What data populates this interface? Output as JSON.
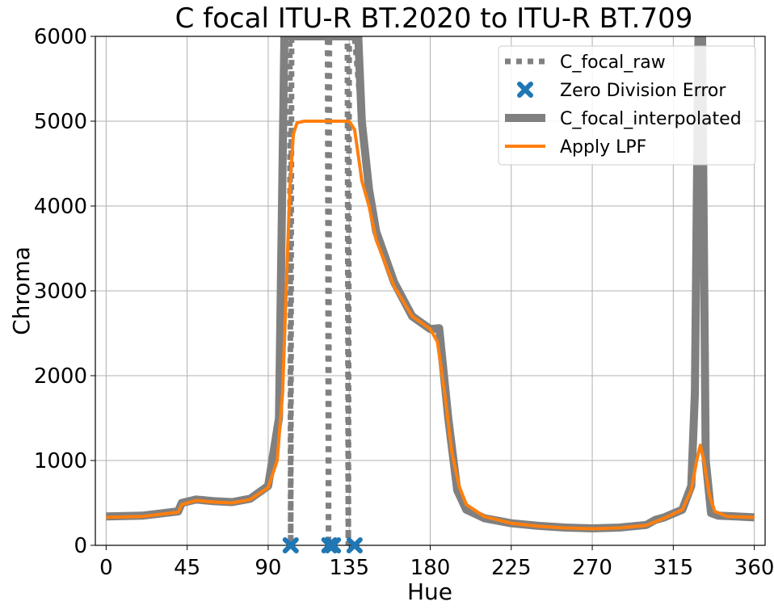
{
  "chart_data": {
    "type": "line",
    "title": "C focal ITU-R BT.2020 to ITU-R BT.709",
    "xlabel": "Hue",
    "ylabel": "Chroma",
    "xlim": [
      -6,
      366
    ],
    "ylim": [
      0,
      6000
    ],
    "xticks": [
      0,
      45,
      90,
      135,
      180,
      225,
      270,
      315,
      360
    ],
    "yticks": [
      0,
      1000,
      2000,
      3000,
      4000,
      5000,
      6000
    ],
    "grid": true,
    "legend_position": "top-right",
    "series": [
      {
        "name": "C_focal_raw",
        "style": "dotted",
        "color": "#808080",
        "x": [
          0,
          20,
          40,
          42,
          50,
          60,
          70,
          80,
          90,
          96,
          99,
          101,
          102,
          102.5,
          103,
          104,
          110,
          120,
          122,
          123,
          123.5,
          124,
          125,
          126,
          128,
          132,
          133,
          134,
          134.5,
          135,
          136,
          138,
          142,
          146,
          150,
          160,
          170,
          180,
          185,
          190,
          195,
          200,
          210,
          225,
          240,
          255,
          270,
          285,
          300,
          305,
          310,
          320,
          325,
          327,
          329,
          330,
          331,
          333,
          336,
          340,
          350,
          360
        ],
        "y": [
          340,
          350,
          400,
          500,
          540,
          520,
          510,
          550,
          700,
          1500,
          6000,
          6000,
          6000,
          0,
          6000,
          6000,
          6000,
          6000,
          6000,
          6000,
          0,
          6000,
          6000,
          6000,
          6000,
          6000,
          6000,
          6000,
          0,
          6000,
          6000,
          6000,
          5000,
          4200,
          3700,
          3100,
          2700,
          2550,
          2560,
          1500,
          650,
          420,
          320,
          260,
          230,
          210,
          200,
          210,
          240,
          300,
          330,
          420,
          700,
          1800,
          6000,
          6000,
          6000,
          1000,
          380,
          350,
          340,
          330
        ]
      },
      {
        "name": "Zero Division Error",
        "style": "marker",
        "color": "#1f77b4",
        "x": [
          102.5,
          124,
          126,
          138
        ],
        "y": [
          0,
          0,
          0,
          0
        ]
      },
      {
        "name": "C_focal_interpolated",
        "style": "thick",
        "color": "#808080",
        "x": [
          0,
          20,
          40,
          42,
          50,
          60,
          70,
          80,
          90,
          96,
          99,
          101,
          103,
          110,
          120,
          130,
          134,
          136,
          138,
          140,
          142,
          146,
          150,
          160,
          170,
          180,
          185,
          190,
          195,
          200,
          210,
          225,
          240,
          255,
          270,
          285,
          300,
          305,
          310,
          320,
          325,
          327,
          329,
          330,
          331,
          333,
          336,
          340,
          350,
          360
        ],
        "y": [
          340,
          350,
          400,
          500,
          540,
          520,
          510,
          550,
          700,
          1500,
          6000,
          6000,
          6000,
          6000,
          6000,
          6000,
          6000,
          6000,
          6000,
          6000,
          5000,
          4200,
          3700,
          3100,
          2700,
          2550,
          2560,
          1500,
          650,
          420,
          320,
          260,
          230,
          210,
          200,
          210,
          240,
          300,
          330,
          420,
          700,
          1800,
          6000,
          6000,
          6000,
          1000,
          380,
          350,
          340,
          330
        ]
      },
      {
        "name": "Apply LPF",
        "style": "solid",
        "color": "#ff7f0e",
        "x": [
          0,
          20,
          40,
          42,
          50,
          60,
          70,
          80,
          90,
          95,
          98,
          100,
          102,
          104,
          106,
          110,
          120,
          130,
          135,
          138,
          140,
          142,
          146,
          150,
          160,
          170,
          180,
          184,
          188,
          192,
          196,
          200,
          210,
          225,
          240,
          255,
          270,
          285,
          300,
          310,
          320,
          325,
          328,
          330,
          332,
          335,
          338,
          345,
          360
        ],
        "y": [
          330,
          340,
          390,
          480,
          530,
          510,
          500,
          540,
          680,
          1000,
          1800,
          3000,
          4200,
          4850,
          4980,
          5000,
          5000,
          5000,
          5000,
          4900,
          4600,
          4300,
          4000,
          3600,
          3050,
          2700,
          2550,
          2400,
          1800,
          1100,
          700,
          480,
          340,
          260,
          225,
          205,
          195,
          205,
          235,
          320,
          420,
          650,
          1000,
          1180,
          1000,
          600,
          400,
          340,
          330
        ]
      }
    ]
  }
}
